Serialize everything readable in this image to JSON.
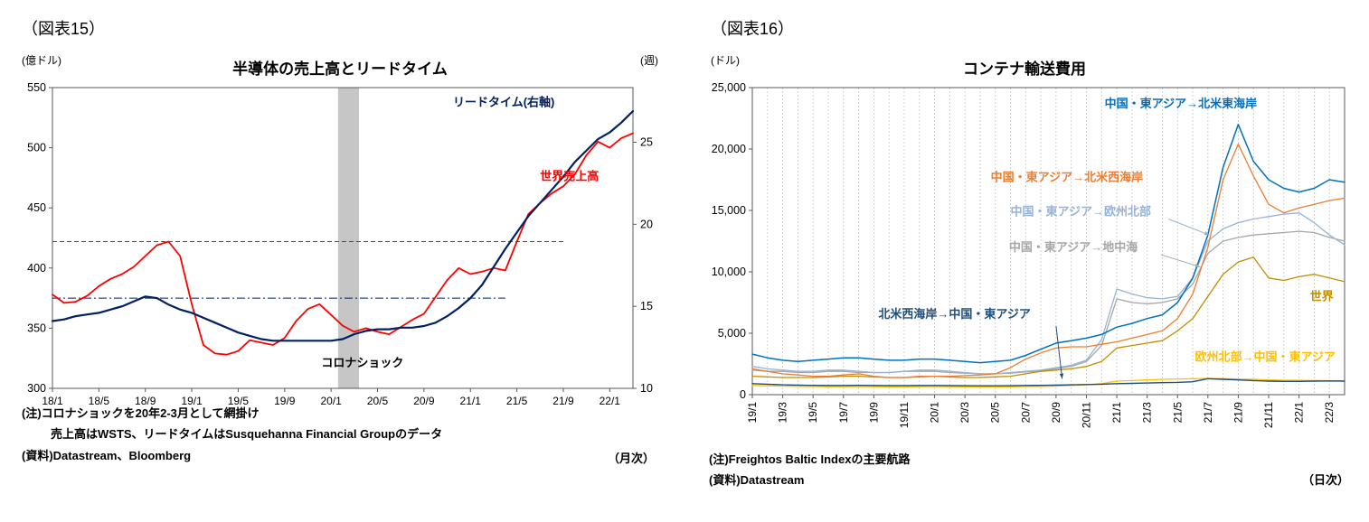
{
  "figure15": {
    "tag": "（図表15）",
    "freq": "（月次）",
    "notes": [
      "(注)コロナショックを20年2-3月として網掛け",
      "売上高はWSTS、リードタイムはSusquehanna Financial Groupのデータ",
      "(資料)Datastream、Bloomberg"
    ]
  },
  "figure16": {
    "tag": "（図表16）",
    "freq": "（日次）",
    "notes": [
      "(注)Freightos Baltic Indexの主要航路",
      "(資料)Datastream"
    ]
  },
  "chart_data": [
    {
      "type": "line",
      "title": "半導体の売上高とリードタイム",
      "ylabel": "(億ドル)",
      "y2label": "(週)",
      "x_label_every": 4,
      "x_label_rotate": false,
      "grid_x_every": 0,
      "ylim_left": [
        300,
        550
      ],
      "ylim_right": [
        10,
        28.33
      ],
      "yticks_left": [
        {
          "v": 300,
          "t": "300"
        },
        {
          "v": 350,
          "t": "350"
        },
        {
          "v": 400,
          "t": "400"
        },
        {
          "v": 450,
          "t": "450"
        },
        {
          "v": 500,
          "t": "500"
        },
        {
          "v": 550,
          "t": "550"
        }
      ],
      "yticks_right": [
        {
          "v": 10,
          "t": "10"
        },
        {
          "v": 15,
          "t": "15"
        },
        {
          "v": 20,
          "t": "20"
        },
        {
          "v": 25,
          "t": "25"
        }
      ],
      "categories": [
        "18/1",
        "18/2",
        "18/3",
        "18/4",
        "18/5",
        "18/6",
        "18/7",
        "18/8",
        "18/9",
        "18/10",
        "18/11",
        "18/12",
        "19/1",
        "19/2",
        "19/3",
        "19/4",
        "19/5",
        "19/6",
        "19/7",
        "19/8",
        "19/9",
        "19/10",
        "19/11",
        "19/12",
        "20/1",
        "20/2",
        "20/3",
        "20/4",
        "20/5",
        "20/6",
        "20/7",
        "20/8",
        "20/9",
        "20/10",
        "20/11",
        "20/12",
        "21/1",
        "21/2",
        "21/3",
        "21/4",
        "21/5",
        "21/6",
        "21/7",
        "21/8",
        "21/9",
        "21/10",
        "21/11",
        "21/12",
        "22/1",
        "22/2",
        "22/3"
      ],
      "series": [
        {
          "name": "世界売上高",
          "axis": "left",
          "color": "#ff0000",
          "width": 1.8,
          "values": [
            378,
            371,
            372,
            377,
            385,
            391,
            395,
            401,
            410,
            419,
            422,
            410,
            370,
            336,
            329,
            328,
            331,
            340,
            338,
            336,
            342,
            356,
            366,
            370,
            361,
            352,
            347,
            350,
            347,
            345,
            351,
            357,
            362,
            376,
            390,
            400,
            395,
            397,
            400,
            398,
            422,
            445,
            454,
            462,
            468,
            478,
            494,
            505,
            500,
            508,
            512
          ]
        },
        {
          "name": "リードタイム(右軸)",
          "axis": "right",
          "color": "#002060",
          "width": 2.2,
          "values": [
            14.1,
            14.2,
            14.4,
            14.5,
            14.6,
            14.8,
            15.0,
            15.3,
            15.6,
            15.5,
            15.1,
            14.8,
            14.6,
            14.3,
            14.0,
            13.7,
            13.4,
            13.2,
            13.0,
            12.9,
            12.9,
            12.9,
            12.9,
            12.9,
            12.9,
            13.0,
            13.3,
            13.5,
            13.6,
            13.6,
            13.7,
            13.7,
            13.8,
            14.0,
            14.4,
            14.9,
            15.5,
            16.3,
            17.4,
            18.5,
            19.5,
            20.5,
            21.3,
            22.1,
            22.9,
            23.8,
            24.5,
            25.2,
            25.6,
            26.2,
            26.9
          ]
        }
      ],
      "ref_lines": [
        {
          "axis": "left",
          "value": 422,
          "color": "#ff0000",
          "dash": "5 3",
          "x_from": 0,
          "x_to": 44
        },
        {
          "axis": "left",
          "value": 375,
          "color": "#002060",
          "dash": "9 3 2 3",
          "x_from": 0,
          "x_to": 39
        }
      ],
      "band": {
        "x_from": 24.6,
        "x_to": 26.4,
        "color": "#c6c6c6",
        "label": "コロナショック(20年2-3月)"
      },
      "annotations": [
        {
          "text": "リードタイム(右軸)",
          "color": "#002060",
          "axis": "right",
          "x": 34.5,
          "y": 27.2,
          "anchor": "start"
        },
        {
          "text": "世界売上高",
          "color": "#ff0000",
          "axis": "left",
          "x": 42,
          "y": 473,
          "anchor": "start"
        },
        {
          "text": "コロナショック",
          "color": "#000000",
          "axis": "left",
          "x": 26.7,
          "y": 318,
          "anchor": "middle"
        }
      ]
    },
    {
      "type": "line",
      "title": "コンテナ輸送費用",
      "ylabel": "(ドル)",
      "x_label_every": 2,
      "x_label_rotate": true,
      "grid_x_every": 1,
      "ylim_left": [
        0,
        25000
      ],
      "yticks_left": [
        {
          "v": 0,
          "t": "0"
        },
        {
          "v": 5000,
          "t": "5,000"
        },
        {
          "v": 10000,
          "t": "10,000"
        },
        {
          "v": 15000,
          "t": "15,000"
        },
        {
          "v": 20000,
          "t": "20,000"
        },
        {
          "v": 25000,
          "t": "25,000"
        }
      ],
      "categories": [
        "19/1",
        "19/2",
        "19/3",
        "19/4",
        "19/5",
        "19/6",
        "19/7",
        "19/8",
        "19/9",
        "19/10",
        "19/11",
        "19/12",
        "20/1",
        "20/2",
        "20/3",
        "20/4",
        "20/5",
        "20/6",
        "20/7",
        "20/8",
        "20/9",
        "20/10",
        "20/11",
        "20/12",
        "21/1",
        "21/2",
        "21/3",
        "21/4",
        "21/5",
        "21/6",
        "21/7",
        "21/8",
        "21/9",
        "21/10",
        "21/11",
        "21/12",
        "22/1",
        "22/2",
        "22/3",
        "22/4"
      ],
      "series": [
        {
          "name": "中国・東アジア→地中海",
          "color": "#a6a6a6",
          "width": 1.3,
          "values": [
            2000,
            1900,
            1900,
            1800,
            1800,
            1900,
            1900,
            1800,
            1800,
            1800,
            1900,
            1900,
            1900,
            1800,
            1750,
            1700,
            1700,
            1750,
            1850,
            1950,
            2100,
            2300,
            2700,
            4000,
            7800,
            7500,
            7400,
            7500,
            7800,
            9000,
            11500,
            12500,
            12800,
            13000,
            13100,
            13200,
            13300,
            13200,
            12800,
            12500
          ]
        },
        {
          "name": "中国・東アジア→欧州北部",
          "color": "#95b3d7",
          "width": 1.3,
          "values": [
            2300,
            2100,
            2000,
            1900,
            1900,
            2000,
            2000,
            1900,
            1800,
            1800,
            1900,
            2000,
            2000,
            1900,
            1800,
            1700,
            1700,
            1800,
            1900,
            2000,
            2200,
            2400,
            2800,
            4500,
            8600,
            8200,
            7900,
            7800,
            8000,
            9500,
            12500,
            13500,
            14000,
            14300,
            14500,
            14700,
            14800,
            14000,
            13000,
            12200
          ]
        },
        {
          "name": "世界",
          "color": "#bf8f00",
          "width": 1.3,
          "values": [
            1500,
            1450,
            1400,
            1400,
            1400,
            1450,
            1500,
            1500,
            1450,
            1400,
            1400,
            1450,
            1500,
            1450,
            1400,
            1400,
            1450,
            1500,
            1700,
            1900,
            2000,
            2100,
            2300,
            2700,
            3800,
            4000,
            4200,
            4400,
            5200,
            6200,
            8000,
            9800,
            10800,
            11200,
            9500,
            9300,
            9600,
            9800,
            9500,
            9200
          ]
        },
        {
          "name": "中国・東アジア→北米西海岸",
          "color": "#ed7d31",
          "width": 1.3,
          "values": [
            2100,
            1900,
            1700,
            1600,
            1500,
            1500,
            1600,
            1700,
            1500,
            1400,
            1400,
            1500,
            1500,
            1500,
            1550,
            1600,
            1700,
            2200,
            2900,
            3400,
            3800,
            3900,
            3900,
            4100,
            4300,
            4600,
            4900,
            5200,
            6200,
            8200,
            12000,
            17500,
            20400,
            17800,
            15500,
            14800,
            15200,
            15500,
            15800,
            16000
          ]
        },
        {
          "name": "中国・東アジア→北米東海岸",
          "color": "#0070c0",
          "width": 1.5,
          "values": [
            3300,
            3000,
            2800,
            2700,
            2800,
            2900,
            3000,
            3000,
            2900,
            2800,
            2800,
            2900,
            2900,
            2800,
            2700,
            2600,
            2700,
            2800,
            3200,
            3700,
            4200,
            4400,
            4600,
            4900,
            5500,
            5800,
            6200,
            6500,
            7500,
            9500,
            13000,
            18500,
            22000,
            19000,
            17500,
            16800,
            16500,
            16800,
            17500,
            17300
          ]
        },
        {
          "name": "欧州北部→中国・東アジア",
          "color": "#ffc000",
          "width": 1.3,
          "values": [
            750,
            720,
            700,
            680,
            660,
            650,
            650,
            660,
            650,
            640,
            640,
            650,
            660,
            650,
            640,
            630,
            630,
            640,
            660,
            680,
            700,
            750,
            800,
            900,
            1100,
            1150,
            1200,
            1250,
            1280,
            1300,
            1320,
            1300,
            1280,
            1250,
            1200,
            1180,
            1160,
            1150,
            1140,
            1130
          ]
        },
        {
          "name": "北米西海岸→中国・東アジア",
          "color": "#1f4e79",
          "width": 1.4,
          "values": [
            900,
            850,
            800,
            780,
            760,
            750,
            750,
            760,
            750,
            740,
            740,
            750,
            750,
            740,
            730,
            720,
            720,
            730,
            750,
            760,
            780,
            800,
            820,
            850,
            900,
            920,
            950,
            980,
            1000,
            1050,
            1300,
            1250,
            1200,
            1150,
            1100,
            1080,
            1080,
            1100,
            1120,
            1100
          ]
        }
      ],
      "annotations": [
        {
          "text": "中国・東アジア→北米東海岸",
          "color": "#0070c0",
          "x": 23.2,
          "y": 23400,
          "anchor": "start"
        },
        {
          "text": "中国・東アジア→北米西海岸",
          "color": "#ed7d31",
          "x": 15.7,
          "y": 17400,
          "anchor": "start"
        },
        {
          "text": "中国・東アジア→欧州北部",
          "color": "#95b3d7",
          "x": 17.0,
          "y": 14600,
          "anchor": "start",
          "arrow": {
            "from_x": 27.4,
            "from_y": 14300,
            "to_x": 30.1,
            "to_y": 13000
          }
        },
        {
          "text": "中国・東アジア→地中海",
          "color": "#a6a6a6",
          "x": 16.9,
          "y": 11700,
          "anchor": "start",
          "arrow": {
            "from_x": 26.9,
            "from_y": 11400,
            "to_x": 29.5,
            "to_y": 10400
          }
        },
        {
          "text": "北米西海岸→中国・東アジア",
          "color": "#1f4e79",
          "x": 8.3,
          "y": 6250,
          "anchor": "start",
          "arrow": {
            "from_x": 20.0,
            "from_y": 5600,
            "to_x": 20.4,
            "to_y": 1300
          }
        },
        {
          "text": "世界",
          "color": "#bf8f00",
          "x": 37.5,
          "y": 7700,
          "anchor": "middle"
        },
        {
          "text": "欧州北部→中国・東アジア",
          "color": "#ffc000",
          "x": 38.4,
          "y": 2750,
          "anchor": "end"
        }
      ]
    }
  ]
}
